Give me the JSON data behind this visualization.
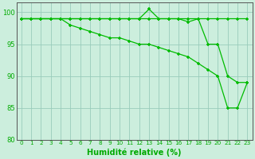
{
  "x": [
    0,
    1,
    2,
    3,
    4,
    5,
    6,
    7,
    8,
    9,
    10,
    11,
    12,
    13,
    14,
    15,
    16,
    17,
    18,
    19,
    20,
    21,
    22,
    23
  ],
  "line1": [
    99,
    99,
    99,
    99,
    99,
    99,
    99,
    99,
    99,
    99,
    99,
    99,
    99,
    100.5,
    99,
    99,
    99,
    99,
    99,
    99,
    99,
    99,
    99,
    99
  ],
  "line2": [
    99,
    99,
    99,
    99,
    99,
    99,
    99,
    99,
    99,
    99,
    99,
    99,
    99,
    99,
    99,
    99,
    99,
    98.5,
    99,
    95,
    95,
    90,
    89,
    89
  ],
  "line3": [
    99,
    99,
    99,
    99,
    99,
    98,
    97.5,
    97,
    96.5,
    96,
    96,
    95.5,
    95,
    95,
    94.5,
    94,
    93.5,
    93,
    92,
    91,
    90,
    85,
    85,
    89
  ],
  "line_color": "#00bb00",
  "bg_color": "#cceedd",
  "grid_color": "#99ccbb",
  "marker": "+",
  "xlabel": "Humidité relative (%)",
  "xlabel_color": "#00aa00",
  "ylim": [
    80,
    101.5
  ],
  "xlim": [
    -0.5,
    23.5
  ],
  "yticks": [
    80,
    85,
    90,
    95,
    100
  ],
  "xtick_labels": [
    "0",
    "1",
    "2",
    "3",
    "4",
    "5",
    "6",
    "7",
    "8",
    "9",
    "10",
    "11",
    "12",
    "13",
    "14",
    "15",
    "16",
    "17",
    "18",
    "19",
    "20",
    "21",
    "22",
    "23"
  ],
  "tick_color": "#00aa00",
  "axis_color": "#555555"
}
